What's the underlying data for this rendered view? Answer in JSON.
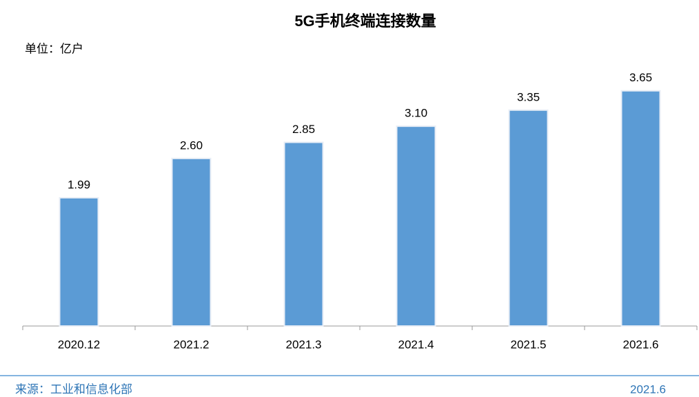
{
  "chart_data": {
    "type": "bar",
    "title": "5G手机终端连接数量",
    "subtitle": "单位：亿户",
    "categories": [
      "2020.12",
      "2021.2",
      "2021.3",
      "2021.4",
      "2021.5",
      "2021.6"
    ],
    "values": [
      1.99,
      2.6,
      2.85,
      3.1,
      3.35,
      3.65
    ],
    "value_labels": [
      "1.99",
      "2.60",
      "2.85",
      "3.10",
      "3.35",
      "3.65"
    ],
    "color": "#5b9bd5",
    "ylim": [
      0,
      4
    ]
  },
  "footer": {
    "source": "来源：工业和信息化部",
    "date": "2021.6"
  }
}
